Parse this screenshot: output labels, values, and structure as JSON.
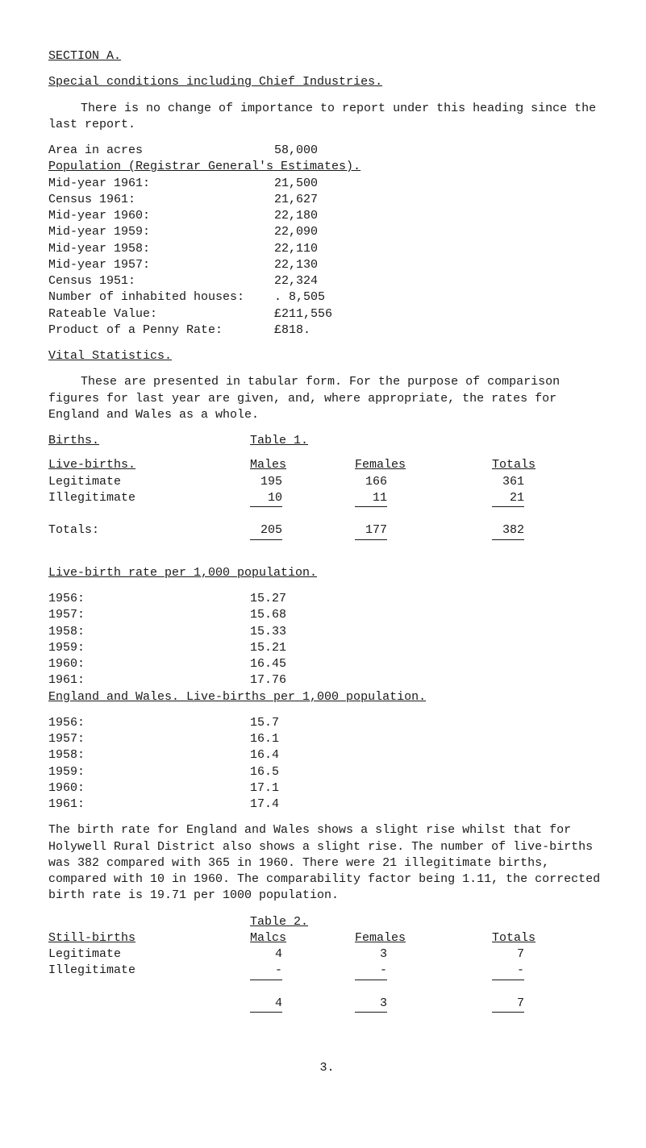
{
  "headings": {
    "section": "SECTION A.",
    "special": "Special conditions including Chief Industries.",
    "vital": "Vital Statistics.",
    "births": "Births.",
    "table1": "Table 1.",
    "livebirths": "Live-births.",
    "males": "Males",
    "females": "Females",
    "totals": "Totals",
    "lbrate": "Live-birth rate per 1,000 population.",
    "ewlb": "England and Wales. Live-births per 1,000 population.",
    "table2": "Table 2.",
    "stillbirths": "Still-births",
    "malcs": "Malcs"
  },
  "para1": "There is no change of importance to report under this heading since the last report.",
  "pop": {
    "area_label": "Area in acres",
    "area_val": "58,000",
    "reg_line": "Population (Registrar General's Estimates).",
    "rows": [
      {
        "label": "Mid-year 1961:",
        "val": "21,500"
      },
      {
        "label": "Census 1961:",
        "val": "21,627"
      },
      {
        "label": "Mid-year 1960:",
        "val": "22,180"
      },
      {
        "label": "Mid-year 1959:",
        "val": "22,090"
      },
      {
        "label": "Mid-year 1958:",
        "val": "22,110"
      },
      {
        "label": "Mid-year 1957:",
        "val": "22,130"
      },
      {
        "label": "Census 1951:",
        "val": "22,324"
      },
      {
        "label": "Number of inhabited houses:",
        "val": ". 8,505"
      },
      {
        "label": "Rateable Value:",
        "val": "£211,556"
      },
      {
        "label": "Product of a Penny Rate:",
        "val": "£818."
      }
    ]
  },
  "para2": "These are presented in tabular form.  For the purpose of comparison figures for last year are given, and, where appropriate, the rates for England and Wales as a whole.",
  "t1": {
    "legit_label": "Legitimate",
    "illegit_label": "Illegitimate",
    "totals_label": "Totals:",
    "legit": {
      "m": "195",
      "f": "166",
      "t": "361"
    },
    "illegit": {
      "m": "10",
      "f": "11",
      "t": "21"
    },
    "totals": {
      "m": "205",
      "f": "177",
      "t": "382"
    }
  },
  "rates1": [
    {
      "y": "1956:",
      "v": "15.27"
    },
    {
      "y": "1957:",
      "v": "15.68"
    },
    {
      "y": "1958:",
      "v": "15.33"
    },
    {
      "y": "1959:",
      "v": "15.21"
    },
    {
      "y": "1960:",
      "v": "16.45"
    },
    {
      "y": "1961:",
      "v": "17.76"
    }
  ],
  "rates2": [
    {
      "y": "1956:",
      "v": "15.7"
    },
    {
      "y": "1957:",
      "v": "16.1"
    },
    {
      "y": "1958:",
      "v": "16.4"
    },
    {
      "y": "1959:",
      "v": "16.5"
    },
    {
      "y": "1960:",
      "v": "17.1"
    },
    {
      "y": "1961:",
      "v": "17.4"
    }
  ],
  "para3": "The birth rate for England and Wales shows a slight rise whilst that for Holywell Rural District also shows a slight rise.  The number of live-births was 382 compared with 365 in 1960.  There were 21 illegitimate births, compared with 10 in 1960.   The comparability factor being 1.11, the corrected birth rate is 19.71 per 1000 population.",
  "t2": {
    "legit_label": "Legitimate",
    "illegit_label": "Illegitimate",
    "legit": {
      "m": "4",
      "f": "3",
      "t": "7"
    },
    "illegit": {
      "m": "-",
      "f": "-",
      "t": "-"
    },
    "totals": {
      "m": "4",
      "f": "3",
      "t": "7"
    }
  },
  "pagenum": "3."
}
